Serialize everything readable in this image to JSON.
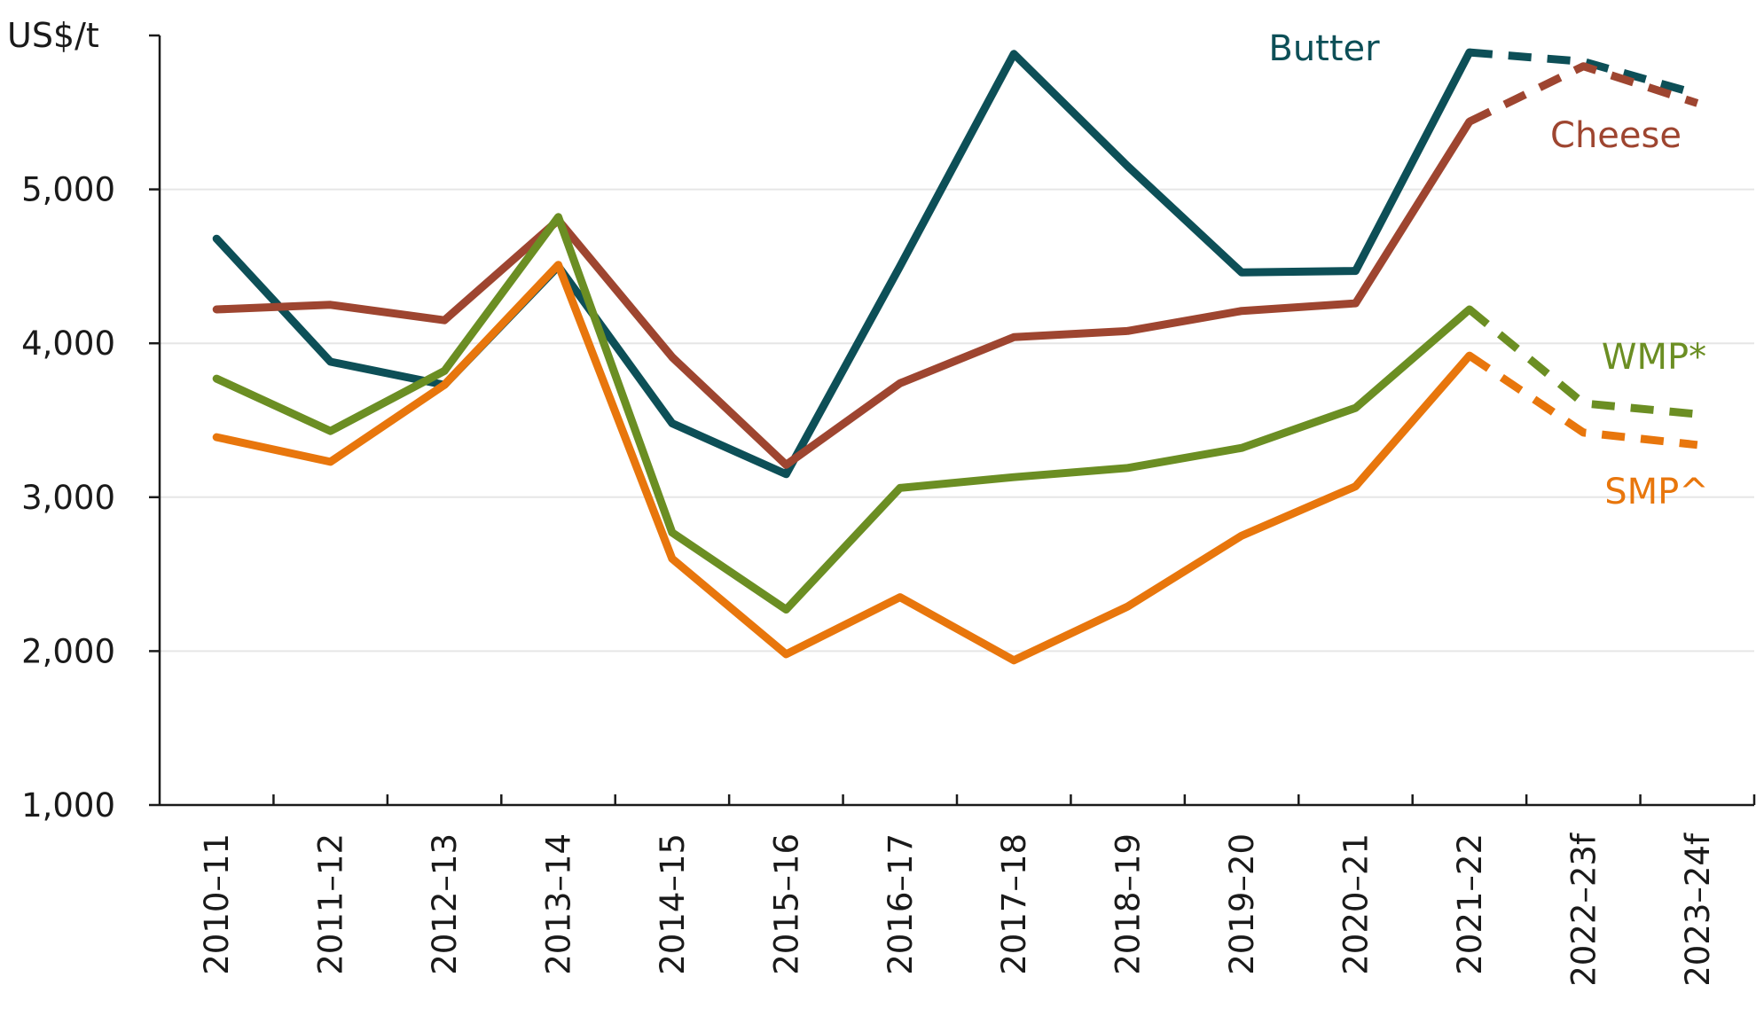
{
  "chart_data": {
    "type": "line",
    "ylabel": "US$/t",
    "ylim": [
      1000,
      6000
    ],
    "yticks": [
      1000,
      2000,
      3000,
      4000,
      5000
    ],
    "ytick_labels": [
      "1,000",
      "2,000",
      "3,000",
      "4,000",
      "5,000"
    ],
    "grid": true,
    "categories": [
      "2010–11",
      "2011–12",
      "2012–13",
      "2013–14",
      "2014–15",
      "2015–16",
      "2016–17",
      "2017–18",
      "2018–19",
      "2019–20",
      "2020–21",
      "2021–22",
      "2022–23f",
      "2023–24f"
    ],
    "forecast_from_index": 11,
    "series": [
      {
        "name": "Butter",
        "color": "#0d4f57",
        "values": [
          4680,
          3880,
          3730,
          4500,
          3480,
          3150,
          4500,
          5880,
          5150,
          4460,
          4470,
          5890,
          5830,
          5620
        ]
      },
      {
        "name": "Cheese",
        "color": "#9e4530",
        "values": [
          4220,
          4250,
          4150,
          4800,
          3910,
          3210,
          3740,
          4040,
          4080,
          4210,
          4260,
          5440,
          5800,
          5560
        ]
      },
      {
        "name": "WMP*",
        "color": "#6b8e23",
        "values": [
          3770,
          3430,
          3820,
          4820,
          2770,
          2270,
          3060,
          3130,
          3190,
          3320,
          3580,
          4220,
          3610,
          3540
        ]
      },
      {
        "name": "SMP^",
        "color": "#e8760c",
        "values": [
          3390,
          3230,
          3730,
          4510,
          2600,
          1980,
          2350,
          1940,
          2290,
          2750,
          3070,
          3920,
          3420,
          3340
        ]
      }
    ]
  }
}
